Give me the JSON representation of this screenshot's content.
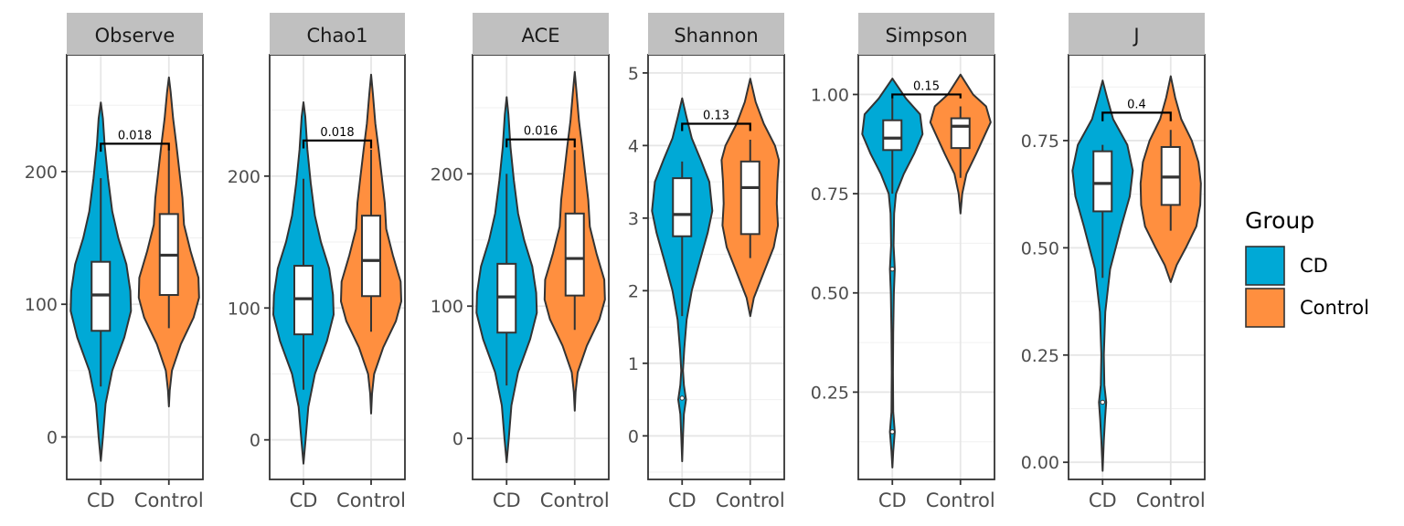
{
  "chart_data": {
    "type": "violin",
    "legend": {
      "title": "Group",
      "position": "right",
      "items": [
        {
          "label": "CD",
          "color": "#00A9D6"
        },
        {
          "label": "Control",
          "color": "#FF8F3F"
        }
      ]
    },
    "categories": [
      "CD",
      "Control"
    ],
    "panels": [
      {
        "title": "Observe",
        "ylim": [
          -32,
          288
        ],
        "yticks": [
          {
            "v": 0,
            "label": "0"
          },
          {
            "v": 100,
            "label": "100"
          },
          {
            "v": 200,
            "label": "200"
          }
        ],
        "groups": [
          {
            "name": "CD",
            "q1": 80,
            "median": 107,
            "q3": 132,
            "whisker_low": 38,
            "whisker_high": 195,
            "violin": [
              [
                -18,
                0
              ],
              [
                0,
                0.07
              ],
              [
                25,
                0.16
              ],
              [
                50,
                0.38
              ],
              [
                75,
                0.78
              ],
              [
                95,
                1.0
              ],
              [
                110,
                0.98
              ],
              [
                130,
                0.85
              ],
              [
                150,
                0.58
              ],
              [
                170,
                0.38
              ],
              [
                195,
                0.24
              ],
              [
                220,
                0.13
              ],
              [
                240,
                0.07
              ],
              [
                252,
                0
              ]
            ]
          },
          {
            "name": "Control",
            "q1": 107,
            "median": 137,
            "q3": 168,
            "whisker_low": 82,
            "whisker_high": 217,
            "violin": [
              [
                23,
                0
              ],
              [
                35,
                0.03
              ],
              [
                50,
                0.1
              ],
              [
                70,
                0.4
              ],
              [
                90,
                0.82
              ],
              [
                105,
                1.0
              ],
              [
                120,
                0.98
              ],
              [
                140,
                0.72
              ],
              [
                160,
                0.5
              ],
              [
                180,
                0.45
              ],
              [
                200,
                0.35
              ],
              [
                220,
                0.25
              ],
              [
                240,
                0.14
              ],
              [
                260,
                0.06
              ],
              [
                271,
                0
              ]
            ]
          }
        ],
        "comparison": {
          "label": "0.018",
          "y": 221,
          "drop_left": 215,
          "drop_right": 216
        }
      },
      {
        "title": "Chao1",
        "ylim": [
          -30,
          292
        ],
        "yticks": [
          {
            "v": 0,
            "label": "0"
          },
          {
            "v": 100,
            "label": "100"
          },
          {
            "v": 200,
            "label": "200"
          }
        ],
        "groups": [
          {
            "name": "CD",
            "q1": 80,
            "median": 107,
            "q3": 132,
            "whisker_low": 38,
            "whisker_high": 198,
            "violin": [
              [
                -18,
                0
              ],
              [
                0,
                0.07
              ],
              [
                25,
                0.16
              ],
              [
                50,
                0.38
              ],
              [
                75,
                0.78
              ],
              [
                95,
                1.0
              ],
              [
                110,
                0.98
              ],
              [
                130,
                0.85
              ],
              [
                150,
                0.58
              ],
              [
                170,
                0.38
              ],
              [
                195,
                0.24
              ],
              [
                220,
                0.13
              ],
              [
                245,
                0.06
              ],
              [
                256,
                0
              ]
            ]
          },
          {
            "name": "Control",
            "q1": 109,
            "median": 136,
            "q3": 170,
            "whisker_low": 82,
            "whisker_high": 220,
            "violin": [
              [
                20,
                0
              ],
              [
                35,
                0.03
              ],
              [
                50,
                0.1
              ],
              [
                70,
                0.4
              ],
              [
                90,
                0.82
              ],
              [
                105,
                1.0
              ],
              [
                120,
                0.98
              ],
              [
                140,
                0.72
              ],
              [
                160,
                0.5
              ],
              [
                180,
                0.45
              ],
              [
                200,
                0.35
              ],
              [
                220,
                0.25
              ],
              [
                240,
                0.14
              ],
              [
                262,
                0.06
              ],
              [
                277,
                0
              ]
            ]
          }
        ],
        "comparison": {
          "label": "0.018",
          "y": 227,
          "drop_left": 221,
          "drop_right": 221
        }
      },
      {
        "title": "ACE",
        "ylim": [
          -31,
          290
        ],
        "yticks": [
          {
            "v": 0,
            "label": "0"
          },
          {
            "v": 100,
            "label": "100"
          },
          {
            "v": 200,
            "label": "200"
          }
        ],
        "groups": [
          {
            "name": "CD",
            "q1": 80,
            "median": 107,
            "q3": 132,
            "whisker_low": 40,
            "whisker_high": 200,
            "violin": [
              [
                -18,
                0
              ],
              [
                0,
                0.07
              ],
              [
                25,
                0.16
              ],
              [
                50,
                0.38
              ],
              [
                75,
                0.78
              ],
              [
                95,
                1.0
              ],
              [
                110,
                0.98
              ],
              [
                130,
                0.85
              ],
              [
                150,
                0.58
              ],
              [
                170,
                0.38
              ],
              [
                195,
                0.24
              ],
              [
                220,
                0.13
              ],
              [
                245,
                0.06
              ],
              [
                258,
                0
              ]
            ]
          },
          {
            "name": "Control",
            "q1": 108,
            "median": 136,
            "q3": 170,
            "whisker_low": 82,
            "whisker_high": 218,
            "violin": [
              [
                21,
                0
              ],
              [
                35,
                0.03
              ],
              [
                50,
                0.1
              ],
              [
                70,
                0.4
              ],
              [
                90,
                0.82
              ],
              [
                105,
                1.0
              ],
              [
                120,
                0.98
              ],
              [
                140,
                0.72
              ],
              [
                160,
                0.5
              ],
              [
                180,
                0.45
              ],
              [
                200,
                0.35
              ],
              [
                220,
                0.25
              ],
              [
                240,
                0.14
              ],
              [
                262,
                0.06
              ],
              [
                277,
                0
              ]
            ]
          }
        ],
        "comparison": {
          "label": "0.016",
          "y": 226,
          "drop_left": 220,
          "drop_right": 220
        }
      },
      {
        "title": "Shannon",
        "ylim": [
          -0.6,
          5.25
        ],
        "yticks": [
          {
            "v": 0,
            "label": "0"
          },
          {
            "v": 1,
            "label": "1"
          },
          {
            "v": 2,
            "label": "2"
          },
          {
            "v": 3,
            "label": "3"
          },
          {
            "v": 4,
            "label": "4"
          },
          {
            "v": 5,
            "label": "5"
          }
        ],
        "groups": [
          {
            "name": "CD",
            "q1": 2.75,
            "median": 3.05,
            "q3": 3.55,
            "whisker_low": 1.65,
            "whisker_high": 3.78,
            "outlier": 0.52,
            "violin": [
              [
                -0.35,
                0
              ],
              [
                0,
                0.03
              ],
              [
                0.3,
                0.06
              ],
              [
                0.5,
                0.13
              ],
              [
                0.7,
                0.06
              ],
              [
                0.9,
                0.03
              ],
              [
                1.2,
                0.07
              ],
              [
                1.6,
                0.15
              ],
              [
                2.0,
                0.32
              ],
              [
                2.4,
                0.58
              ],
              [
                2.8,
                0.85
              ],
              [
                3.1,
                1.0
              ],
              [
                3.5,
                0.9
              ],
              [
                3.8,
                0.62
              ],
              [
                4.1,
                0.32
              ],
              [
                4.4,
                0.14
              ],
              [
                4.65,
                0
              ]
            ]
          },
          {
            "name": "Control",
            "q1": 2.78,
            "median": 3.42,
            "q3": 3.78,
            "whisker_low": 2.45,
            "whisker_high": 4.08,
            "violin": [
              [
                1.65,
                0
              ],
              [
                1.9,
                0.12
              ],
              [
                2.2,
                0.4
              ],
              [
                2.6,
                0.78
              ],
              [
                2.9,
                0.92
              ],
              [
                3.2,
                0.88
              ],
              [
                3.5,
                0.9
              ],
              [
                3.8,
                0.95
              ],
              [
                4.0,
                0.82
              ],
              [
                4.3,
                0.45
              ],
              [
                4.6,
                0.18
              ],
              [
                4.92,
                0
              ]
            ]
          }
        ],
        "comparison": {
          "label": "0.13",
          "y": 4.3,
          "drop_left": 4.2,
          "drop_right": 4.2
        }
      },
      {
        "title": "Simpson",
        "ylim": [
          0.03,
          1.1
        ],
        "yticks": [
          {
            "v": 0.25,
            "label": "0.25"
          },
          {
            "v": 0.5,
            "label": "0.50"
          },
          {
            "v": 0.75,
            "label": "0.75"
          },
          {
            "v": 1.0,
            "label": "1.00"
          }
        ],
        "groups": [
          {
            "name": "CD",
            "q1": 0.86,
            "median": 0.89,
            "q3": 0.935,
            "whisker_low": 0.75,
            "whisker_high": 0.99,
            "outliers": [
              0.56,
              0.15
            ],
            "violin": [
              [
                0.06,
                0
              ],
              [
                0.1,
                0.03
              ],
              [
                0.15,
                0.08
              ],
              [
                0.2,
                0.03
              ],
              [
                0.3,
                0.02
              ],
              [
                0.4,
                0.03
              ],
              [
                0.5,
                0.05
              ],
              [
                0.56,
                0.08
              ],
              [
                0.62,
                0.04
              ],
              [
                0.7,
                0.06
              ],
              [
                0.75,
                0.12
              ],
              [
                0.8,
                0.38
              ],
              [
                0.85,
                0.72
              ],
              [
                0.9,
                1.0
              ],
              [
                0.95,
                0.92
              ],
              [
                0.99,
                0.45
              ],
              [
                1.04,
                0
              ]
            ]
          },
          {
            "name": "Control",
            "q1": 0.865,
            "median": 0.92,
            "q3": 0.94,
            "whisker_low": 0.79,
            "whisker_high": 0.97,
            "violin": [
              [
                0.7,
                0
              ],
              [
                0.75,
                0.06
              ],
              [
                0.8,
                0.2
              ],
              [
                0.85,
                0.52
              ],
              [
                0.9,
                0.82
              ],
              [
                0.93,
                1.0
              ],
              [
                0.97,
                0.85
              ],
              [
                1.0,
                0.42
              ],
              [
                1.05,
                0
              ]
            ]
          }
        ],
        "comparison": {
          "label": "0.15",
          "y": 1.0,
          "drop_left": 0.99,
          "drop_right": 0.99
        }
      },
      {
        "title": "J",
        "ylim": [
          -0.04,
          0.95
        ],
        "yticks": [
          {
            "v": 0.0,
            "label": "0.00"
          },
          {
            "v": 0.25,
            "label": "0.25"
          },
          {
            "v": 0.5,
            "label": "0.50"
          },
          {
            "v": 0.75,
            "label": "0.75"
          }
        ],
        "groups": [
          {
            "name": "CD",
            "q1": 0.585,
            "median": 0.65,
            "q3": 0.725,
            "whisker_low": 0.43,
            "whisker_high": 0.74,
            "outlier": 0.14,
            "violin": [
              [
                -0.02,
                0
              ],
              [
                0.05,
                0.04
              ],
              [
                0.1,
                0.08
              ],
              [
                0.14,
                0.12
              ],
              [
                0.18,
                0.06
              ],
              [
                0.25,
                0.04
              ],
              [
                0.35,
                0.09
              ],
              [
                0.45,
                0.25
              ],
              [
                0.55,
                0.62
              ],
              [
                0.62,
                0.9
              ],
              [
                0.68,
                1.0
              ],
              [
                0.74,
                0.82
              ],
              [
                0.8,
                0.35
              ],
              [
                0.85,
                0.15
              ],
              [
                0.89,
                0
              ]
            ]
          },
          {
            "name": "Control",
            "q1": 0.6,
            "median": 0.665,
            "q3": 0.735,
            "whisker_low": 0.54,
            "whisker_high": 0.775,
            "violin": [
              [
                0.42,
                0
              ],
              [
                0.46,
                0.2
              ],
              [
                0.5,
                0.5
              ],
              [
                0.55,
                0.85
              ],
              [
                0.6,
                0.98
              ],
              [
                0.65,
                1.0
              ],
              [
                0.7,
                0.92
              ],
              [
                0.75,
                0.7
              ],
              [
                0.8,
                0.35
              ],
              [
                0.85,
                0.15
              ],
              [
                0.9,
                0
              ]
            ]
          }
        ],
        "comparison": {
          "label": "0.4",
          "y": 0.815,
          "drop_left": 0.795,
          "drop_right": 0.795
        }
      }
    ]
  }
}
